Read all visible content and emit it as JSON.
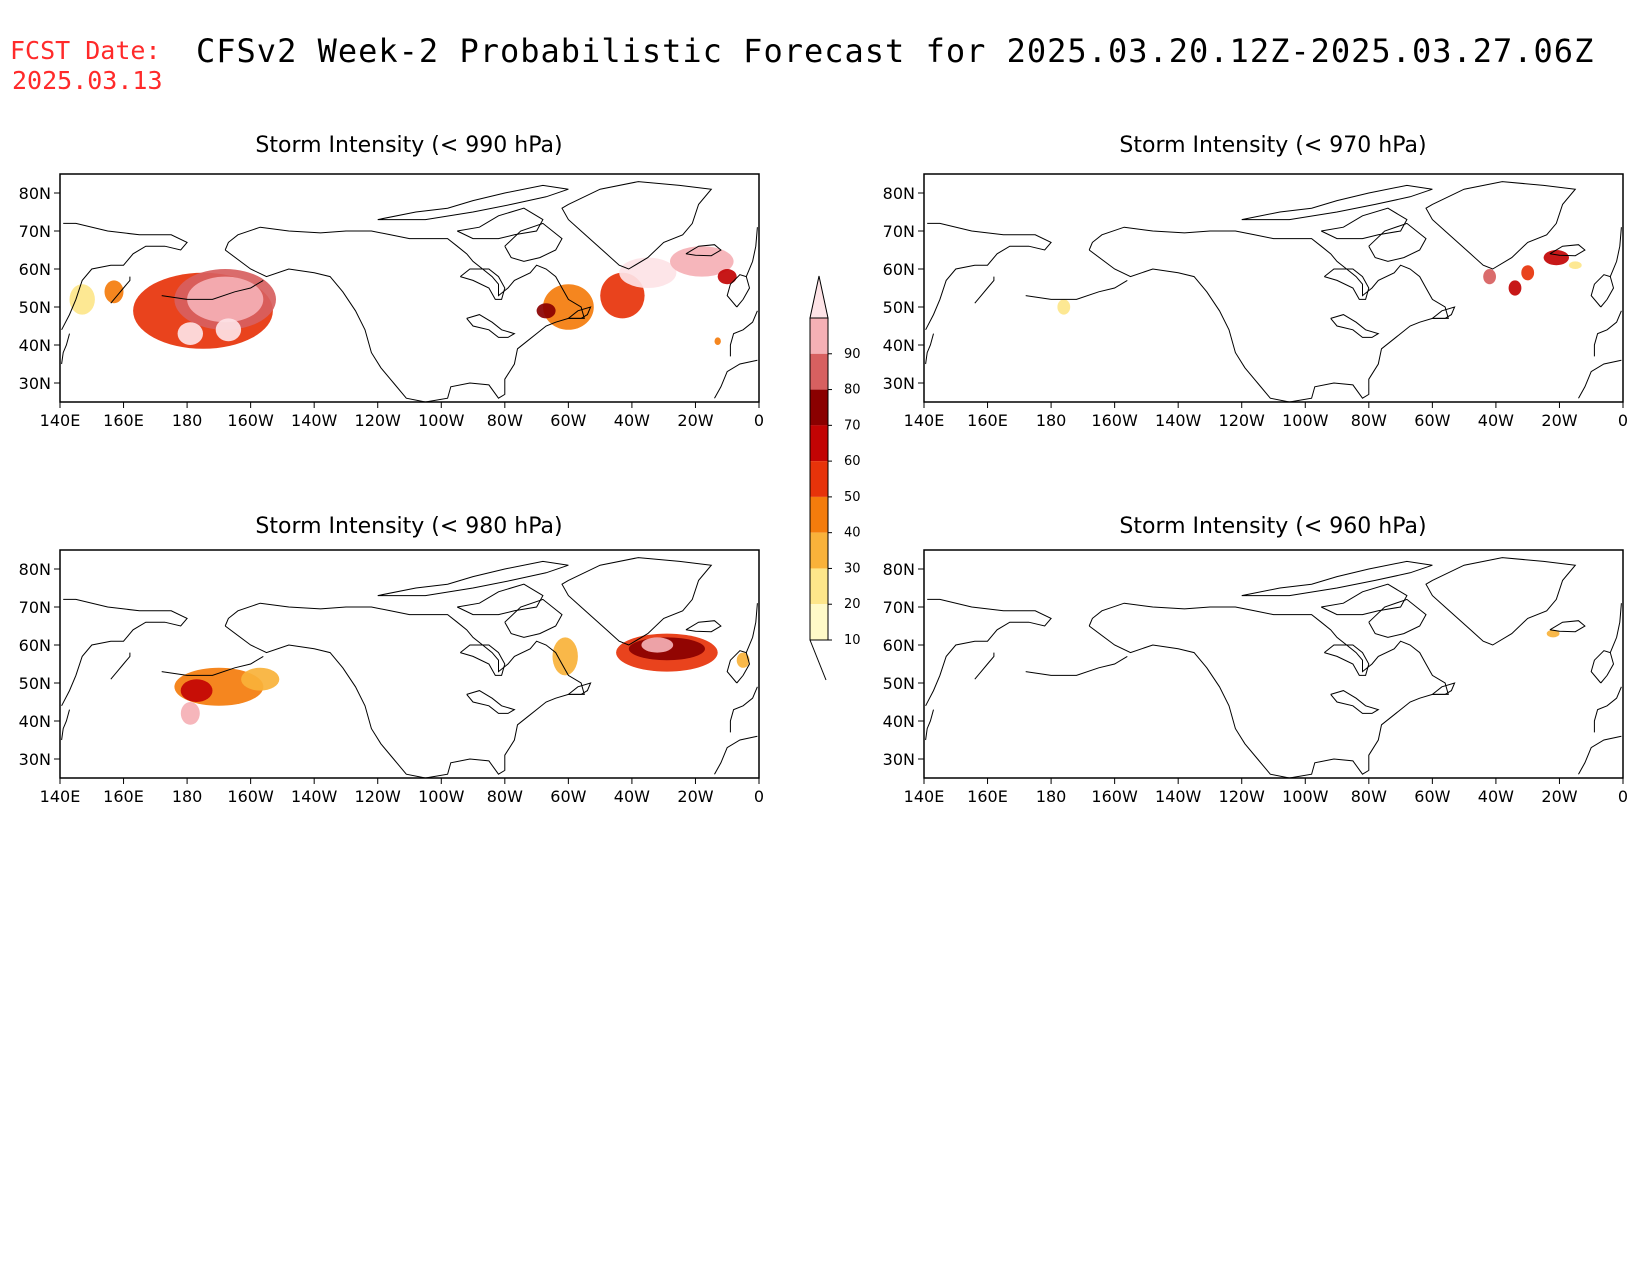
{
  "header": {
    "fcst_label": "FCST Date:",
    "fcst_value": "2025.03.13",
    "title": "CFSv2 Week-2 Probabilistic Forecast for 2025.03.20.12Z-2025.03.27.06Z",
    "fcst_color": "#ff2a2a"
  },
  "axes": {
    "lon_labels": [
      "140E",
      "160E",
      "180",
      "160W",
      "140W",
      "120W",
      "100W",
      "80W",
      "60W",
      "40W",
      "20W",
      "0"
    ],
    "lat_labels": [
      "80N",
      "70N",
      "60N",
      "50N",
      "40N",
      "30N"
    ],
    "lon_range": [
      140,
      360
    ],
    "lat_range": [
      25,
      85
    ]
  },
  "colorbar": {
    "labels": [
      "10",
      "20",
      "30",
      "40",
      "50",
      "60",
      "70",
      "80",
      "90"
    ],
    "colors": [
      "#fffac8",
      "#fde68a",
      "#f9b23a",
      "#f47c0c",
      "#e7330a",
      "#c20404",
      "#8a0000",
      "#d76060",
      "#f5b0b5",
      "#fde3e6"
    ]
  },
  "panels": [
    {
      "id": "p990",
      "title": "Storm Intensity (< 990 hPa)",
      "blobs": [
        {
          "lon": 147,
          "lat": 52,
          "rx": 4,
          "ry": 4,
          "level": 1
        },
        {
          "lon": 157,
          "lat": 54,
          "rx": 3,
          "ry": 3,
          "level": 3
        },
        {
          "lon": 185,
          "lat": 49,
          "rx": 22,
          "ry": 10,
          "level": 4
        },
        {
          "lon": 192,
          "lat": 52,
          "rx": 16,
          "ry": 8,
          "level": 7
        },
        {
          "lon": 192,
          "lat": 52,
          "rx": 12,
          "ry": 6,
          "level": 8
        },
        {
          "lon": 181,
          "lat": 43,
          "rx": 4,
          "ry": 3,
          "level": 9
        },
        {
          "lon": 193,
          "lat": 44,
          "rx": 4,
          "ry": 3,
          "level": 9
        },
        {
          "lon": 300,
          "lat": 50,
          "rx": 8,
          "ry": 6,
          "level": 3
        },
        {
          "lon": 293,
          "lat": 49,
          "rx": 3,
          "ry": 2,
          "level": 6
        },
        {
          "lon": 317,
          "lat": 53,
          "rx": 7,
          "ry": 6,
          "level": 4
        },
        {
          "lon": 325,
          "lat": 59,
          "rx": 9,
          "ry": 4,
          "level": 9
        },
        {
          "lon": 342,
          "lat": 62,
          "rx": 10,
          "ry": 4,
          "level": 8
        },
        {
          "lon": 350,
          "lat": 58,
          "rx": 3,
          "ry": 2,
          "level": 5
        },
        {
          "lon": 347,
          "lat": 41,
          "rx": 1,
          "ry": 1,
          "level": 3
        }
      ]
    },
    {
      "id": "p970",
      "title": "Storm Intensity (< 970 hPa)",
      "blobs": [
        {
          "lon": 184,
          "lat": 50,
          "rx": 2,
          "ry": 2,
          "level": 1
        },
        {
          "lon": 318,
          "lat": 58,
          "rx": 2,
          "ry": 2,
          "level": 7
        },
        {
          "lon": 326,
          "lat": 55,
          "rx": 2,
          "ry": 2,
          "level": 5
        },
        {
          "lon": 330,
          "lat": 59,
          "rx": 2,
          "ry": 2,
          "level": 4
        },
        {
          "lon": 339,
          "lat": 63,
          "rx": 4,
          "ry": 2,
          "level": 5
        },
        {
          "lon": 345,
          "lat": 61,
          "rx": 2,
          "ry": 1,
          "level": 1
        }
      ]
    },
    {
      "id": "p980",
      "title": "Storm Intensity (< 980 hPa)",
      "blobs": [
        {
          "lon": 190,
          "lat": 49,
          "rx": 14,
          "ry": 5,
          "level": 3
        },
        {
          "lon": 183,
          "lat": 48,
          "rx": 5,
          "ry": 3,
          "level": 5
        },
        {
          "lon": 181,
          "lat": 42,
          "rx": 3,
          "ry": 3,
          "level": 8
        },
        {
          "lon": 203,
          "lat": 51,
          "rx": 6,
          "ry": 3,
          "level": 2
        },
        {
          "lon": 299,
          "lat": 57,
          "rx": 4,
          "ry": 5,
          "level": 2
        },
        {
          "lon": 331,
          "lat": 58,
          "rx": 16,
          "ry": 5,
          "level": 4
        },
        {
          "lon": 331,
          "lat": 59,
          "rx": 12,
          "ry": 3,
          "level": 6
        },
        {
          "lon": 328,
          "lat": 60,
          "rx": 5,
          "ry": 2,
          "level": 8
        },
        {
          "lon": 355,
          "lat": 56,
          "rx": 2,
          "ry": 2,
          "level": 2
        }
      ]
    },
    {
      "id": "p960",
      "title": "Storm Intensity (< 960 hPa)",
      "blobs": [
        {
          "lon": 338,
          "lat": 63,
          "rx": 2,
          "ry": 1,
          "level": 2
        }
      ]
    }
  ]
}
